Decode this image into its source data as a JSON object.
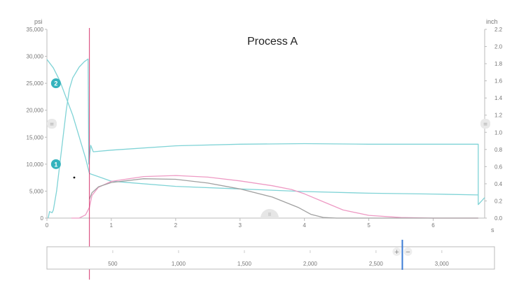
{
  "chart": {
    "title": "Process A",
    "left_unit": "psi",
    "right_unit": "inch",
    "x_unit": "s",
    "marker_labels": [
      "2",
      "1"
    ],
    "handle_left": "=",
    "handle_right": "=",
    "handle_bottom": "II",
    "zoom_in": "+",
    "zoom_out": "−",
    "colors": {
      "teal": "#7fd3d6",
      "pink": "#ee9ac4",
      "gray": "#a0a0a0",
      "cursor": "#d6336c",
      "marker": "#35b3bd",
      "slider": "#3a7bd5"
    }
  },
  "chart_data": {
    "type": "line",
    "title": "Process A",
    "xlabel": "s",
    "ylabel": "psi",
    "y2label": "inch",
    "xlim": [
      0,
      6.8
    ],
    "ylim": [
      0,
      35000
    ],
    "y2lim": [
      0,
      2.2
    ],
    "x_ticks": [
      "0",
      "1",
      "2",
      "3",
      "4",
      "5",
      "6"
    ],
    "y_ticks": [
      "0",
      "5,000",
      "10,000",
      "15,000",
      "20,000",
      "25,000",
      "30,000",
      "35,000"
    ],
    "y2_ticks": [
      "0.0",
      "0.2",
      "0.4",
      "0.6",
      "0.8",
      "1.0",
      "1.2",
      "1.4",
      "1.6",
      "1.8",
      "2.0",
      "2.2"
    ],
    "cursor_x": 0.66,
    "grid": false,
    "series": [
      {
        "axis": "right",
        "color": "#7fd3d6",
        "points": [
          [
            0,
            1.85
          ],
          [
            0.1,
            1.75
          ],
          [
            0.2,
            1.6
          ],
          [
            0.3,
            1.4
          ],
          [
            0.4,
            1.2
          ],
          [
            0.5,
            0.95
          ],
          [
            0.6,
            0.7
          ],
          [
            0.66,
            0.52
          ],
          [
            1,
            0.43
          ],
          [
            2,
            0.37
          ],
          [
            3,
            0.34
          ],
          [
            4,
            0.31
          ],
          [
            5,
            0.29
          ],
          [
            6,
            0.28
          ],
          [
            6.7,
            0.27
          ]
        ]
      },
      {
        "axis": "left",
        "color": "#7fd3d6",
        "points": [
          [
            0.02,
            0
          ],
          [
            0.04,
            1200
          ],
          [
            0.08,
            1000
          ],
          [
            0.1,
            1500
          ],
          [
            0.15,
            5000
          ],
          [
            0.2,
            10000
          ],
          [
            0.25,
            15000
          ],
          [
            0.3,
            20000
          ],
          [
            0.35,
            24000
          ],
          [
            0.4,
            26000
          ],
          [
            0.5,
            28000
          ],
          [
            0.58,
            29000
          ],
          [
            0.64,
            29500
          ],
          [
            0.65,
            10000
          ],
          [
            0.68,
            13500
          ],
          [
            0.72,
            12300
          ],
          [
            1,
            12600
          ],
          [
            2,
            13400
          ],
          [
            3,
            13700
          ],
          [
            4,
            13800
          ],
          [
            5,
            13700
          ],
          [
            6,
            13700
          ],
          [
            6.7,
            13700
          ],
          [
            6.7,
            2500
          ],
          [
            6.8,
            3800
          ]
        ]
      },
      {
        "axis": "left",
        "color": "#ee9ac4",
        "points": [
          [
            0.38,
            0
          ],
          [
            0.5,
            0
          ],
          [
            0.6,
            600
          ],
          [
            0.66,
            2000
          ],
          [
            0.7,
            4200
          ],
          [
            0.8,
            5700
          ],
          [
            1,
            6800
          ],
          [
            1.5,
            7700
          ],
          [
            2,
            7900
          ],
          [
            2.5,
            7600
          ],
          [
            3,
            6900
          ],
          [
            3.5,
            6000
          ],
          [
            3.8,
            5300
          ],
          [
            4,
            4500
          ],
          [
            4.3,
            3000
          ],
          [
            4.6,
            1500
          ],
          [
            5,
            500
          ],
          [
            5.5,
            100
          ],
          [
            6,
            0
          ],
          [
            6.7,
            0
          ]
        ]
      },
      {
        "axis": "left",
        "color": "#a0a0a0",
        "points": [
          [
            0.66,
            3500
          ],
          [
            0.7,
            4700
          ],
          [
            0.8,
            5800
          ],
          [
            1,
            6600
          ],
          [
            1.5,
            7300
          ],
          [
            2,
            7200
          ],
          [
            2.5,
            6500
          ],
          [
            3,
            5400
          ],
          [
            3.5,
            3900
          ],
          [
            3.9,
            2000
          ],
          [
            4.1,
            700
          ],
          [
            4.3,
            100
          ],
          [
            4.5,
            0
          ],
          [
            5,
            0
          ],
          [
            6,
            0
          ],
          [
            6.7,
            0
          ]
        ]
      }
    ],
    "markers": [
      {
        "label": "2",
        "x": 0.14,
        "y": 25000
      },
      {
        "label": "1",
        "x": 0.14,
        "y": 10000
      }
    ]
  },
  "navigator": {
    "ticks": [
      "500",
      "1,000",
      "1,500",
      "2,000",
      "2,500",
      "3,000"
    ],
    "tick_values": [
      500,
      1000,
      1500,
      2000,
      2500,
      3000
    ],
    "range": [
      0,
      3400
    ],
    "slider_value": 2700
  }
}
